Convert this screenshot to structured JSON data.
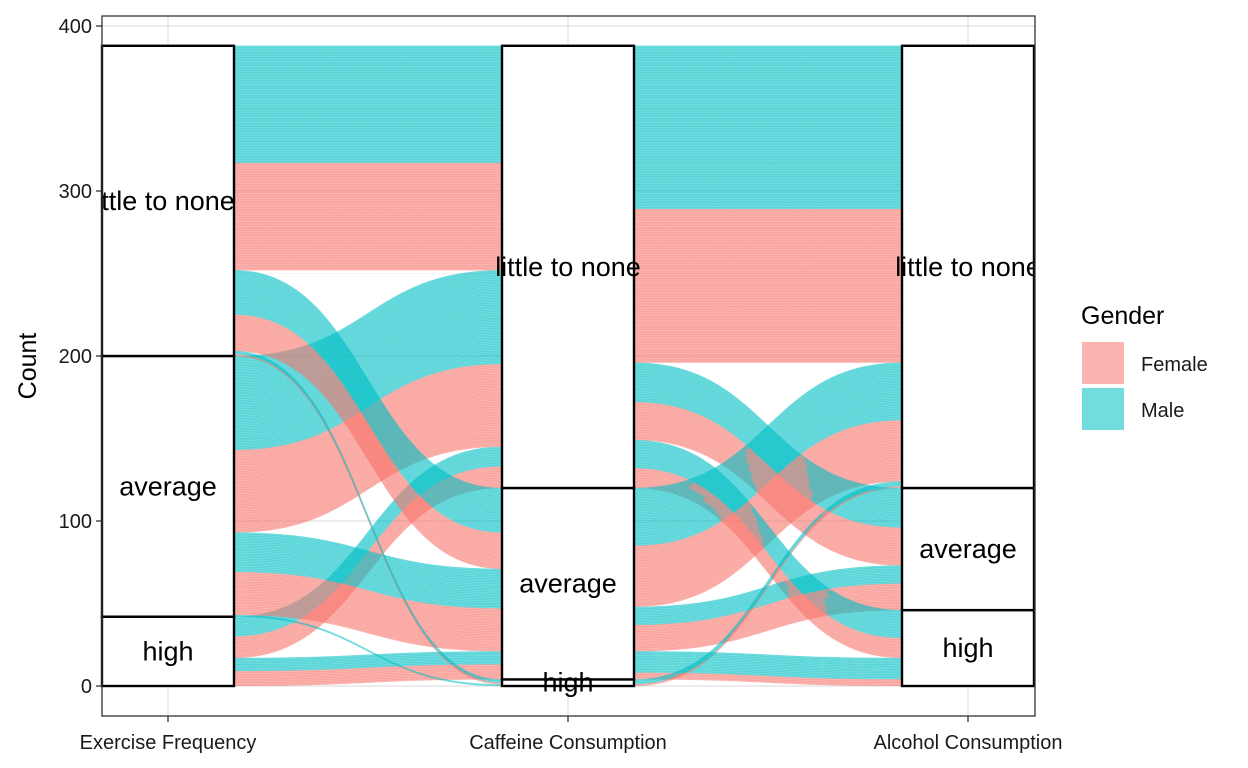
{
  "chart_data": {
    "type": "alluvial",
    "ylabel": "Count",
    "xlabel": "",
    "ylim": [
      0,
      400
    ],
    "y_ticks": [
      0,
      100,
      200,
      300,
      400
    ],
    "axes": [
      "Exercise Frequency",
      "Caffeine Consumption",
      "Alcohol Consumption"
    ],
    "strata": [
      {
        "axis": "Exercise Frequency",
        "levels": [
          {
            "name": "high",
            "count": 42
          },
          {
            "name": "average",
            "count": 158
          },
          {
            "name": "little to none",
            "count": 188
          }
        ]
      },
      {
        "axis": "Caffeine Consumption",
        "levels": [
          {
            "name": "high",
            "count": 4
          },
          {
            "name": "average",
            "count": 116
          },
          {
            "name": "little to none",
            "count": 268
          }
        ]
      },
      {
        "axis": "Alcohol Consumption",
        "levels": [
          {
            "name": "high",
            "count": 46
          },
          {
            "name": "average",
            "count": 74
          },
          {
            "name": "little to none",
            "count": 268
          }
        ]
      }
    ],
    "stratum_display": [
      "high",
      "average",
      "ttle to none",
      "high",
      "average",
      "little to none",
      "high",
      "average",
      "little to none"
    ],
    "legend": {
      "title": "Gender",
      "placement": "right",
      "entries": [
        "Female",
        "Male"
      ]
    },
    "colors": {
      "Female": "#F8766D",
      "Male": "#00BFC4"
    },
    "flow_alpha": 0.55,
    "grid": true,
    "theme": "bw"
  }
}
